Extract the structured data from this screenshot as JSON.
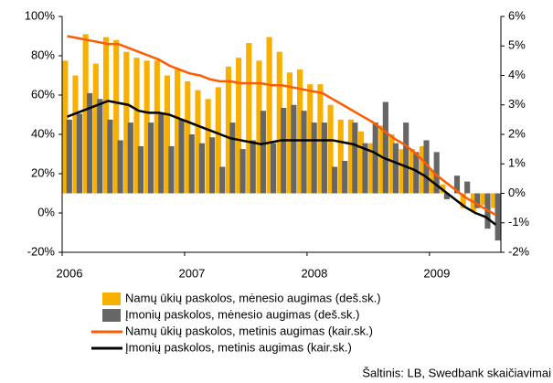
{
  "chart_data": {
    "type": "bar",
    "source": "Šaltinis: LB, Swedbank skaičiavimai",
    "categories": [
      "2006",
      null,
      null,
      null,
      null,
      null,
      null,
      null,
      null,
      null,
      null,
      null,
      "2007",
      null,
      null,
      null,
      null,
      null,
      null,
      null,
      null,
      null,
      null,
      null,
      "2008",
      null,
      null,
      null,
      null,
      null,
      null,
      null,
      null,
      null,
      null,
      null,
      "2009",
      null,
      null,
      null,
      null,
      null,
      null
    ],
    "ylim": [
      -20,
      100
    ],
    "yticks": [
      {
        "value": -20,
        "label": "-20%"
      },
      {
        "value": 0,
        "label": "0%"
      },
      {
        "value": 20,
        "label": "20%"
      },
      {
        "value": 40,
        "label": "40%"
      },
      {
        "value": 60,
        "label": "60%"
      },
      {
        "value": 80,
        "label": "80%"
      },
      {
        "value": 100,
        "label": "100%"
      }
    ],
    "y2lim": [
      -2,
      6
    ],
    "y2ticks": [
      {
        "value": -2,
        "label": "-2%"
      },
      {
        "value": -1,
        "label": "-1%"
      },
      {
        "value": 0,
        "label": "0%"
      },
      {
        "value": 1,
        "label": "1%"
      },
      {
        "value": 2,
        "label": "2%"
      },
      {
        "value": 3,
        "label": "3%"
      },
      {
        "value": 4,
        "label": "4%"
      },
      {
        "value": 5,
        "label": "5%"
      },
      {
        "value": 6,
        "label": "6%"
      }
    ],
    "series": [
      {
        "name": "Namų ūkių paskolos, mėnesio augimas (dеš.sk.)",
        "type": "bar",
        "axis": "y2",
        "color": "#f7b000",
        "values": [
          4.5,
          4.0,
          5.4,
          4.4,
          5.3,
          5.2,
          4.8,
          4.6,
          4.5,
          4.5,
          4.0,
          4.2,
          3.8,
          3.5,
          3.2,
          3.6,
          4.3,
          4.6,
          5.1,
          4.5,
          5.3,
          4.8,
          4.1,
          4.2,
          3.7,
          3.7,
          3.0,
          2.5,
          2.5,
          2.1,
          1.7,
          2.3,
          2.0,
          1.5,
          1.5,
          1.6,
          0.8,
          0.3,
          0.0,
          -0.5,
          -0.6,
          -0.4,
          -0.5
        ]
      },
      {
        "name": "Įmonių paskolos, mėnesio augimas (deš.sk.)",
        "type": "bar",
        "axis": "y2",
        "color": "#666666",
        "values": [
          2.5,
          2.7,
          3.4,
          3.2,
          2.5,
          1.8,
          2.4,
          1.6,
          2.4,
          2.7,
          1.6,
          2.5,
          2.0,
          1.7,
          1.9,
          0.9,
          2.4,
          1.5,
          1.8,
          2.8,
          1.7,
          2.9,
          3.0,
          2.8,
          2.4,
          2.4,
          0.9,
          1.1,
          2.4,
          1.7,
          2.4,
          3.1,
          1.7,
          2.4,
          1.4,
          1.8,
          1.4,
          -0.2,
          0.6,
          0.4,
          -0.5,
          -1.2,
          -1.6
        ]
      },
      {
        "name": "Namų ūkių paskolos, metinis augimas (kair.sk.)",
        "type": "line",
        "axis": "y",
        "color": "#ff5a00",
        "values": [
          90,
          89,
          88,
          87,
          86,
          86,
          84,
          82,
          80,
          78,
          75,
          73,
          71,
          70,
          68,
          67,
          67,
          66,
          66,
          66,
          65,
          65,
          64,
          63,
          62,
          61,
          58,
          55,
          52,
          49,
          46,
          42,
          38,
          35,
          31,
          26,
          20,
          16,
          12,
          8,
          5,
          2,
          -1
        ]
      },
      {
        "name": "Įmonių paskolos, metinis augimas (kair.sk.)",
        "type": "line",
        "axis": "y",
        "color": "#000000",
        "values": [
          49,
          51,
          53,
          55,
          57,
          56,
          55,
          52,
          51,
          51,
          50,
          48,
          46,
          44,
          42,
          40,
          38,
          37,
          36,
          35,
          36,
          37,
          37,
          37,
          37,
          37,
          37,
          36,
          35,
          33,
          31,
          28,
          26,
          24,
          22,
          19,
          15,
          11,
          7,
          3,
          0,
          -2,
          -6
        ]
      }
    ]
  }
}
